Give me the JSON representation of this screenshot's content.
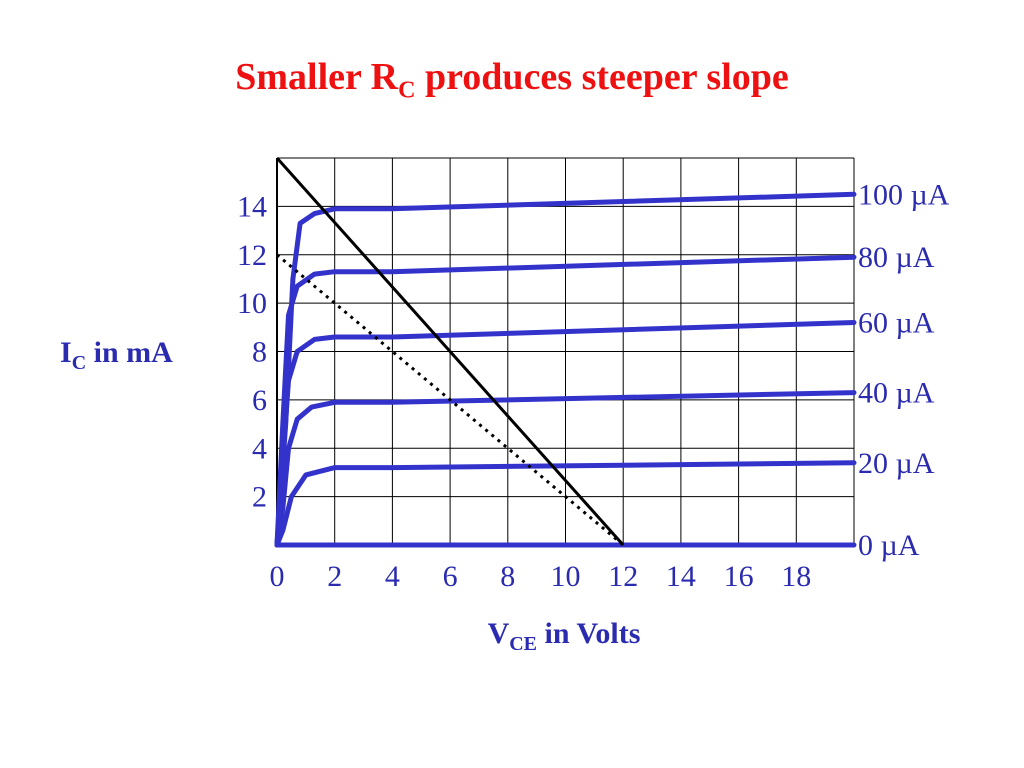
{
  "title": {
    "main": "Smaller R",
    "sub": "C",
    "rest": " produces steeper slope"
  },
  "chart_data": {
    "type": "line",
    "x_label": {
      "main": "V",
      "sub": "CE",
      "rest": " in Volts"
    },
    "y_label": {
      "main": "I",
      "sub": "C",
      "rest": " in mA"
    },
    "x_ticks": [
      "0",
      "2",
      "4",
      "6",
      "8",
      "10",
      "12",
      "14",
      "16",
      "18"
    ],
    "y_ticks": [
      "2",
      "4",
      "6",
      "8",
      "10",
      "12",
      "14"
    ],
    "xlim": [
      0,
      20
    ],
    "ylim": [
      0,
      16
    ],
    "grid": true,
    "curve_color": "#3333cc",
    "series": [
      {
        "name": "0 µA",
        "points": [
          [
            0,
            0
          ],
          [
            20,
            0
          ]
        ]
      },
      {
        "name": "20 µA",
        "points": [
          [
            0,
            0
          ],
          [
            0.2,
            0.6
          ],
          [
            0.5,
            2.0
          ],
          [
            1.0,
            2.9
          ],
          [
            2.0,
            3.2
          ],
          [
            4,
            3.2
          ],
          [
            20,
            3.4
          ]
        ]
      },
      {
        "name": "40 µA",
        "points": [
          [
            0,
            0
          ],
          [
            0.2,
            1.5
          ],
          [
            0.4,
            4.0
          ],
          [
            0.7,
            5.2
          ],
          [
            1.2,
            5.7
          ],
          [
            2.0,
            5.9
          ],
          [
            4,
            5.9
          ],
          [
            20,
            6.3
          ]
        ]
      },
      {
        "name": "60 µA",
        "points": [
          [
            0,
            0
          ],
          [
            0.2,
            3.5
          ],
          [
            0.4,
            6.8
          ],
          [
            0.7,
            8.0
          ],
          [
            1.3,
            8.5
          ],
          [
            2.0,
            8.6
          ],
          [
            4,
            8.6
          ],
          [
            20,
            9.2
          ]
        ]
      },
      {
        "name": "80 µA",
        "points": [
          [
            0,
            0
          ],
          [
            0.2,
            5.0
          ],
          [
            0.4,
            9.5
          ],
          [
            0.7,
            10.7
          ],
          [
            1.3,
            11.2
          ],
          [
            2.0,
            11.3
          ],
          [
            4,
            11.3
          ],
          [
            20,
            11.9
          ]
        ]
      },
      {
        "name": "100 µA",
        "points": [
          [
            0,
            0
          ],
          [
            0.3,
            5.0
          ],
          [
            0.55,
            11.0
          ],
          [
            0.8,
            13.3
          ],
          [
            1.3,
            13.7
          ],
          [
            2.0,
            13.9
          ],
          [
            4,
            13.9
          ],
          [
            20,
            14.5
          ]
        ]
      }
    ],
    "load_lines": [
      {
        "style": "solid",
        "color": "#000000",
        "points": [
          [
            0,
            16
          ],
          [
            12,
            0
          ]
        ]
      },
      {
        "style": "dotted",
        "color": "#000000",
        "points": [
          [
            0,
            12
          ],
          [
            12,
            0
          ]
        ]
      }
    ]
  }
}
